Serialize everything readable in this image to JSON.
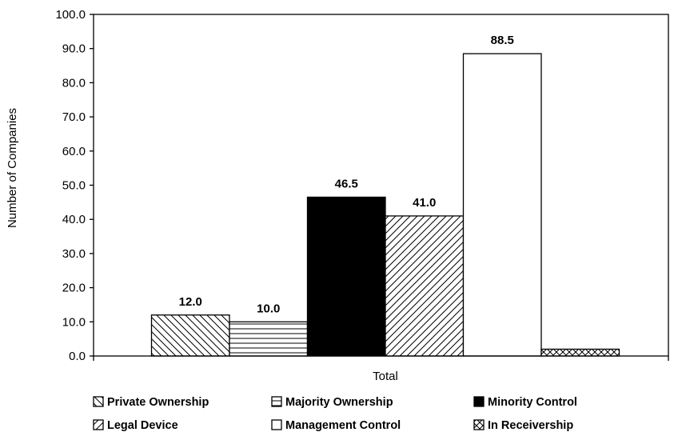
{
  "chart_data": {
    "type": "bar",
    "title": "",
    "xlabel": "Total",
    "ylabel": "Number of Companies",
    "categories": [
      "Total"
    ],
    "ylim": [
      0,
      100
    ],
    "y_ticks": [
      "0.0",
      "10.0",
      "20.0",
      "30.0",
      "40.0",
      "50.0",
      "60.0",
      "70.0",
      "80.0",
      "90.0",
      "100.0"
    ],
    "grid": false,
    "legend_position": "bottom",
    "series": [
      {
        "name": "Private Ownership",
        "values": [
          12.0
        ],
        "label": "12.0",
        "pattern": "diag-back",
        "color": "#000000"
      },
      {
        "name": "Majority Ownership",
        "values": [
          10.0
        ],
        "label": "10.0",
        "pattern": "horizontal",
        "color": "#000000"
      },
      {
        "name": "Minority Control",
        "values": [
          46.5
        ],
        "label": "46.5",
        "pattern": "solid",
        "color": "#000000"
      },
      {
        "name": "Legal Device",
        "values": [
          41.0
        ],
        "label": "41.0",
        "pattern": "diag-fwd",
        "color": "#000000"
      },
      {
        "name": "Management Control",
        "values": [
          88.5
        ],
        "label": "88.5",
        "pattern": "empty",
        "color": "#000000"
      },
      {
        "name": "In Receivership",
        "values": [
          2.0
        ],
        "label": "",
        "pattern": "cross",
        "color": "#000000"
      }
    ]
  }
}
